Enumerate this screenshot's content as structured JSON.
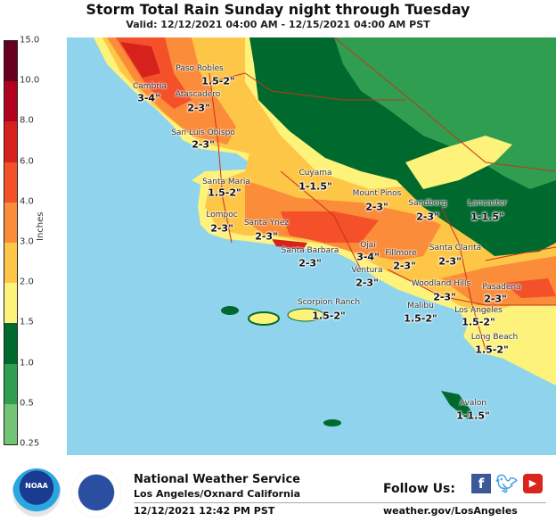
{
  "title": "Storm Total Rain Sunday night through Tuesday",
  "subtitle": "Valid: 12/12/2021 04:00 AM - 12/15/2021 04:00 AM PST",
  "legend": {
    "unit": "Inches",
    "ticks": [
      "15.0",
      "10.0",
      "8.0",
      "6.0",
      "4.0",
      "3.0",
      "2.0",
      "1.5",
      "1.0",
      "0.5",
      "0.25"
    ],
    "colors": [
      "#67001f",
      "#b2001f",
      "#d7211c",
      "#f4502a",
      "#fb8c3a",
      "#fdc646",
      "#fdf27a",
      "#006a2e",
      "#2f9e50",
      "#74c476"
    ]
  },
  "colors": {
    "ocean": "#8fd3ec",
    "border_lines": "#c8321e"
  },
  "locations": [
    {
      "name": "Paso Robles",
      "amount": "1.5-2\""
    },
    {
      "name": "Cambria",
      "amount": "3-4\""
    },
    {
      "name": "Atascadero",
      "amount": "2-3\""
    },
    {
      "name": "San Luis Obispo",
      "amount": "2-3\""
    },
    {
      "name": "Santa Maria",
      "amount": "1.5-2\""
    },
    {
      "name": "Lompoc",
      "amount": "2-3\""
    },
    {
      "name": "Santa Ynez",
      "amount": "2-3\""
    },
    {
      "name": "Cuyama",
      "amount": "1-1.5\""
    },
    {
      "name": "Mount Pinos",
      "amount": "2-3\""
    },
    {
      "name": "Sandberg",
      "amount": "2-3\""
    },
    {
      "name": "Lancaster",
      "amount": "1-1.5\""
    },
    {
      "name": "Santa Barbara",
      "amount": "2-3\""
    },
    {
      "name": "Ojai",
      "amount": "3-4\""
    },
    {
      "name": "Fillmore",
      "amount": "2-3\""
    },
    {
      "name": "Ventura",
      "amount": "2-3\""
    },
    {
      "name": "Santa Clarita",
      "amount": "2-3\""
    },
    {
      "name": "Woodland Hills",
      "amount": "2-3\""
    },
    {
      "name": "Pasadena",
      "amount": "2-3\""
    },
    {
      "name": "Malibu",
      "amount": "1.5-2\""
    },
    {
      "name": "Los Angeles",
      "amount": "1.5-2\""
    },
    {
      "name": "Long Beach",
      "amount": "1.5-2\""
    },
    {
      "name": "Scorpion Ranch",
      "amount": "1.5-2\""
    },
    {
      "name": "Avalon",
      "amount": "1-1.5\""
    }
  ],
  "footer": {
    "org": "National Weather Service",
    "office": "Los Angeles/Oxnard California",
    "issued": "12/12/2021 12:42 PM PST",
    "follow": "Follow Us:",
    "website": "weather.gov/LosAngeles",
    "noaa_logo_text": "NOAA",
    "nws_logo_text": "NATIONAL WEATHER SERVICE",
    "social": [
      {
        "icon": "facebook-icon",
        "color": "#3b5998"
      },
      {
        "icon": "twitter-icon",
        "color": "#4ba3e3"
      },
      {
        "icon": "youtube-icon",
        "color": "#d9251d"
      }
    ]
  }
}
